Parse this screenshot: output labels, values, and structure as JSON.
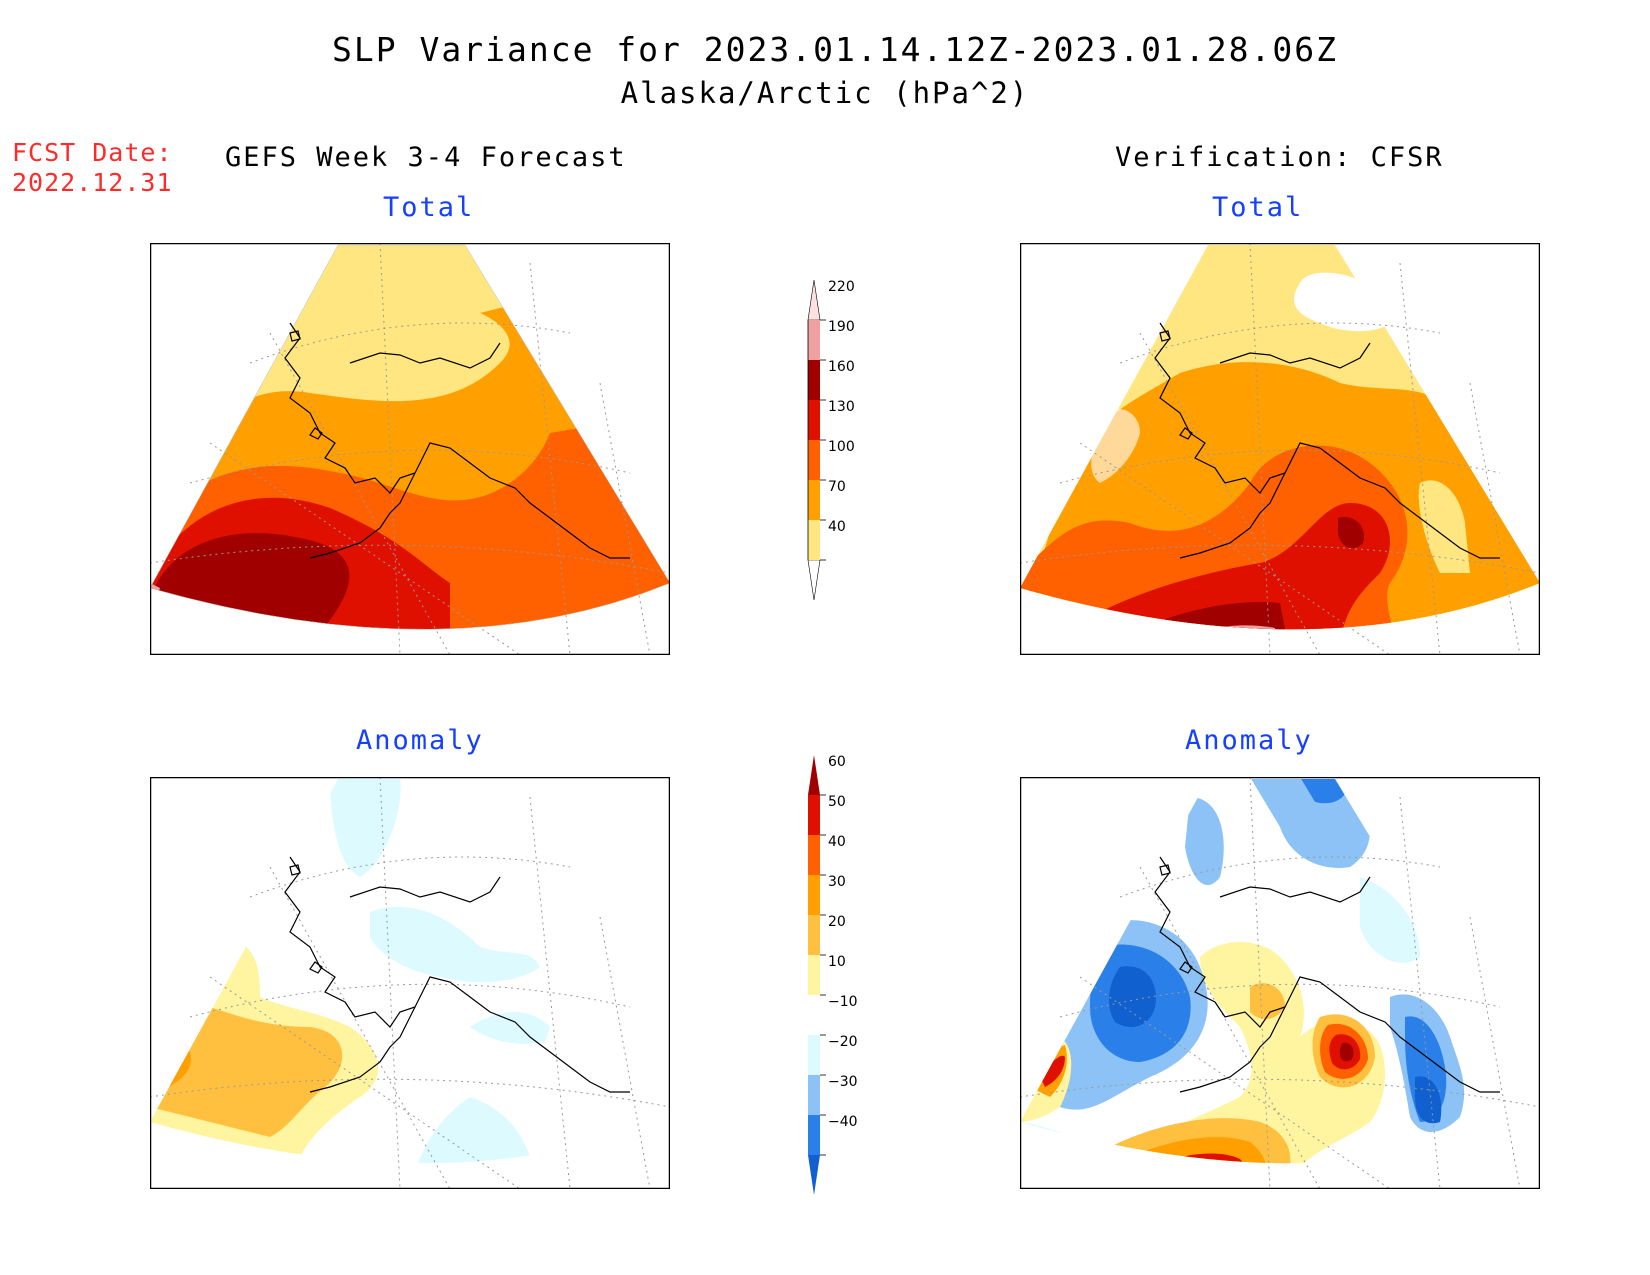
{
  "title": "SLP Variance for 2023.01.14.12Z-2023.01.28.06Z",
  "subtitle": "Alaska/Arctic (hPa^2)",
  "forecast_date_label": "FCST Date:",
  "forecast_date_value": "2022.12.31",
  "left_column_title": "GEFS Week 3-4 Forecast",
  "right_column_title": "Verification: CFSR",
  "panels": {
    "fcst_total": {
      "label": "Total"
    },
    "obs_total": {
      "label": "Total"
    },
    "fcst_anom": {
      "label": "Anomaly"
    },
    "obs_anom": {
      "label": "Anomaly"
    }
  },
  "colorbar_total": {
    "levels": [
      40,
      70,
      100,
      130,
      160,
      190,
      220
    ],
    "colors": [
      "#ffffff",
      "#ffe680",
      "#ffa000",
      "#ff6000",
      "#e01000",
      "#a00000",
      "#f0a0a0",
      "#ffe0e0"
    ]
  },
  "colorbar_anomaly": {
    "levels": [
      -40,
      -30,
      -20,
      -10,
      10,
      20,
      30,
      40,
      50,
      60
    ],
    "colors": [
      "#1060d0",
      "#2a80e8",
      "#8cc2f5",
      "#dcfaff",
      "#ffffff",
      "#fff4a0",
      "#ffc040",
      "#ffa000",
      "#ff6000",
      "#e01000",
      "#a00000"
    ]
  }
}
